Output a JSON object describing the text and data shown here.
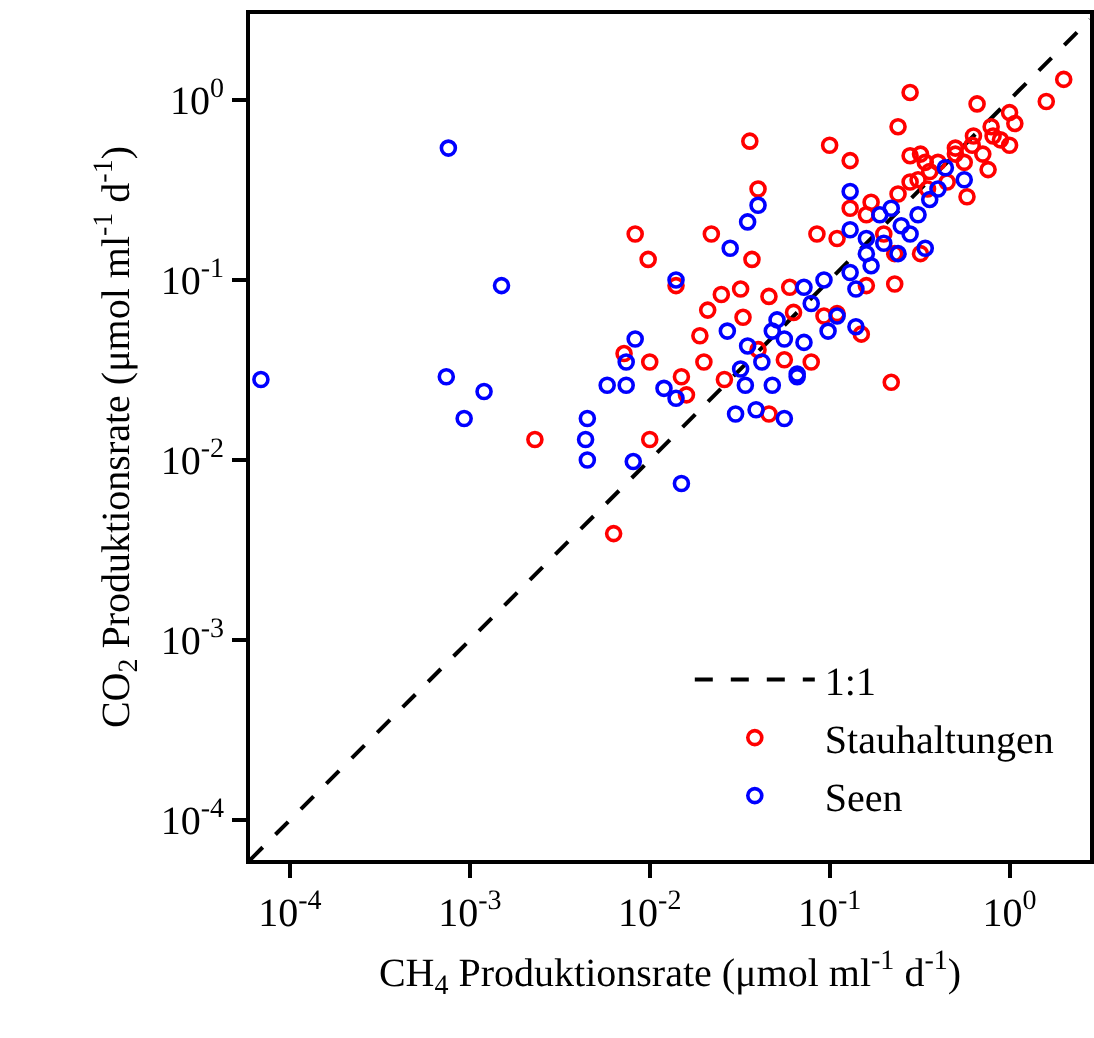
{
  "chart_data": {
    "type": "scatter",
    "xlabel": "CH$_{4}$ Produktionsrate (μmol ml$^{-1}$ d$^{-1}$)",
    "ylabel": "CO$_{2}$ Produktionsrate (μmol ml$^{-1}$ d$^{-1}$)",
    "log": "xy",
    "grid": false,
    "legend": "bottom right",
    "marker": "circle",
    "xlim": [
      6e-05,
      2.8
    ],
    "ylim": [
      6e-05,
      3.0
    ],
    "xticks": [
      {
        "value": 0.0001,
        "label": "10$^{-4}$"
      },
      {
        "value": 0.001,
        "label": "10$^{-3}$"
      },
      {
        "value": 0.01,
        "label": "10$^{-2}$"
      },
      {
        "value": 0.1,
        "label": "10$^{-1}$"
      },
      {
        "value": 1,
        "label": "10$^{0}$"
      }
    ],
    "yticks": [
      {
        "value": 0.0001,
        "label": "10$^{-4}$"
      },
      {
        "value": 0.001,
        "label": "10$^{-3}$"
      },
      {
        "value": 0.01,
        "label": "10$^{-2}$"
      },
      {
        "value": 0.1,
        "label": "10$^{-1}$"
      },
      {
        "value": 1,
        "label": "10$^{0}$"
      }
    ],
    "series": [
      {
        "name": "1:1",
        "type": "line",
        "line_style": "dashed",
        "marker": "none",
        "color": "#000000",
        "x": [
          6e-05,
          2.8
        ],
        "values": [
          6e-05,
          2.8
        ]
      },
      {
        "name": "Stauhaltungen",
        "color": "#ff0000",
        "x": [
          2.0,
          1.6,
          0.28,
          0.66,
          1.0,
          1.07,
          1.0,
          0.81,
          0.62,
          0.5,
          0.76,
          0.58,
          0.24,
          0.1,
          0.13,
          0.036,
          0.04,
          0.0083,
          0.0098,
          0.022,
          0.037,
          0.085,
          0.17,
          0.28,
          0.34,
          0.24,
          0.31,
          0.36,
          0.2,
          0.16,
          0.13,
          0.11,
          0.23,
          0.32,
          0.23,
          0.014,
          0.032,
          0.025,
          0.046,
          0.06,
          0.021,
          0.033,
          0.019,
          0.063,
          0.093,
          0.11,
          0.15,
          0.0072,
          0.01,
          0.015,
          0.02,
          0.026,
          0.04,
          0.056,
          0.079,
          0.22,
          0.16,
          0.0023,
          0.01,
          0.0063,
          0.016,
          0.046,
          0.32,
          0.4,
          0.5,
          0.63,
          0.79,
          0.89,
          0.45,
          0.35,
          0.28,
          0.71,
          0.56
        ],
        "values": [
          1.3,
          0.98,
          1.1,
          0.95,
          0.85,
          0.74,
          0.56,
          0.63,
          0.56,
          0.54,
          0.41,
          0.29,
          0.71,
          0.56,
          0.46,
          0.59,
          0.32,
          0.18,
          0.13,
          0.18,
          0.13,
          0.18,
          0.27,
          0.49,
          0.45,
          0.3,
          0.36,
          0.4,
          0.18,
          0.23,
          0.25,
          0.17,
          0.095,
          0.14,
          0.14,
          0.093,
          0.089,
          0.083,
          0.081,
          0.091,
          0.068,
          0.062,
          0.049,
          0.066,
          0.063,
          0.065,
          0.05,
          0.039,
          0.035,
          0.029,
          0.035,
          0.028,
          0.041,
          0.036,
          0.035,
          0.027,
          0.093,
          0.013,
          0.013,
          0.0039,
          0.023,
          0.018,
          0.5,
          0.45,
          0.5,
          0.63,
          0.71,
          0.6,
          0.35,
          0.32,
          0.35,
          0.5,
          0.45
        ]
      },
      {
        "name": "Seen",
        "color": "#0000ff",
        "x": [
          0.00076,
          6.9e-05,
          0.0015,
          0.00074,
          0.0012,
          0.014,
          0.035,
          0.04,
          0.028,
          0.13,
          0.13,
          0.19,
          0.34,
          0.44,
          0.56,
          0.36,
          0.28,
          0.17,
          0.093,
          0.072,
          0.079,
          0.14,
          0.098,
          0.11,
          0.051,
          0.048,
          0.056,
          0.072,
          0.027,
          0.035,
          0.0083,
          0.0074,
          0.0058,
          0.0074,
          0.012,
          0.032,
          0.042,
          0.048,
          0.034,
          0.066,
          0.16,
          0.24,
          0.31,
          0.0045,
          0.0044,
          0.0045,
          0.00093,
          0.0081,
          0.015,
          0.014,
          0.03,
          0.039,
          0.056,
          0.066,
          0.25,
          0.2,
          0.16,
          0.22,
          0.4,
          0.13,
          0.14
        ],
        "values": [
          0.54,
          0.028,
          0.093,
          0.029,
          0.024,
          0.1,
          0.21,
          0.26,
          0.15,
          0.31,
          0.19,
          0.23,
          0.15,
          0.42,
          0.36,
          0.28,
          0.18,
          0.12,
          0.1,
          0.091,
          0.074,
          0.055,
          0.052,
          0.063,
          0.06,
          0.052,
          0.047,
          0.045,
          0.052,
          0.043,
          0.047,
          0.035,
          0.026,
          0.026,
          0.025,
          0.032,
          0.035,
          0.026,
          0.026,
          0.029,
          0.17,
          0.14,
          0.23,
          0.017,
          0.013,
          0.01,
          0.017,
          0.0098,
          0.0074,
          0.022,
          0.018,
          0.019,
          0.017,
          0.03,
          0.2,
          0.16,
          0.14,
          0.25,
          0.32,
          0.11,
          0.089
        ]
      }
    ]
  }
}
